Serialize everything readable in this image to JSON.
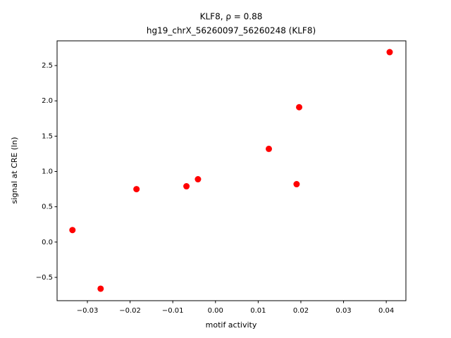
{
  "chart_data": {
    "type": "scatter",
    "title": "KLF8, ρ = 0.88",
    "subtitle": "hg19_chrX_56260097_56260248 (KLF8)",
    "x_label": "motif activity",
    "y_label": "signal at CRE (ln)",
    "color": "#ff0000",
    "x": [
      -0.0335,
      -0.0269,
      -0.0185,
      -0.0068,
      -0.0041,
      0.0125,
      0.019,
      0.0196,
      0.0408
    ],
    "values": [
      0.17,
      -0.66,
      0.75,
      0.79,
      0.89,
      1.32,
      0.82,
      1.91,
      2.69
    ],
    "xlim": [
      -0.0371,
      0.0446
    ],
    "ylim": [
      -0.83,
      2.85
    ],
    "xticks": [
      {
        "value": -0.03,
        "label": "−0.03"
      },
      {
        "value": -0.02,
        "label": "−0.02"
      },
      {
        "value": -0.01,
        "label": "−0.01"
      },
      {
        "value": 0,
        "label": "0.00"
      },
      0.01,
      0.02,
      0.03,
      0.04
    ],
    "yticks": [
      {
        "value": -0.5,
        "label": "−0.5"
      },
      {
        "value": 0,
        "label": "0.0"
      },
      0.5,
      {
        "value": 1,
        "label": "1.0"
      },
      1.5,
      {
        "value": 2,
        "label": "2.0"
      },
      2.5
    ]
  }
}
